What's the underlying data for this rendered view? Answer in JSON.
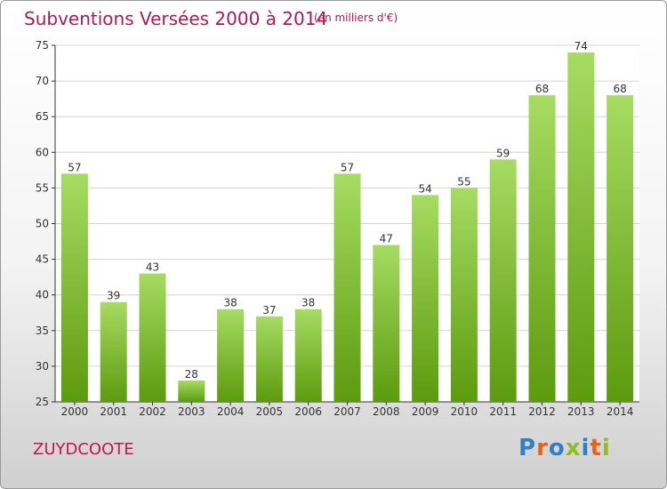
{
  "header": {
    "title": "Subventions Versées 2000 à 2014",
    "subtitle": "(en milliers d'€)"
  },
  "footer": {
    "commune": "ZUYDCOOTE",
    "logo_text": "Proxiti"
  },
  "colors": {
    "title": "#b5174f",
    "bar_light": "#9fd85a",
    "bar_dark": "#5c9a0e",
    "grid": "#d0d0d0",
    "logo_letters": [
      "#2f7fc9",
      "#e8631a",
      "#2f7fc9",
      "#8fbf1f",
      "#2f7fc9",
      "#e8631a",
      "#8fbf1f"
    ]
  },
  "chart_data": {
    "type": "bar",
    "title": "Subventions Versées 2000 à 2014",
    "subtitle": "(en milliers d'€)",
    "xlabel": "",
    "ylabel": "",
    "categories": [
      "2000",
      "2001",
      "2002",
      "2003",
      "2004",
      "2005",
      "2006",
      "2007",
      "2008",
      "2009",
      "2010",
      "2011",
      "2012",
      "2013",
      "2014"
    ],
    "values": [
      57,
      39,
      43,
      28,
      38,
      37,
      38,
      57,
      47,
      54,
      55,
      59,
      68,
      74,
      68
    ],
    "ylim": [
      25,
      75
    ],
    "yticks": [
      25,
      30,
      35,
      40,
      45,
      50,
      55,
      60,
      65,
      70,
      75
    ],
    "grid": true,
    "data_labels": true
  }
}
